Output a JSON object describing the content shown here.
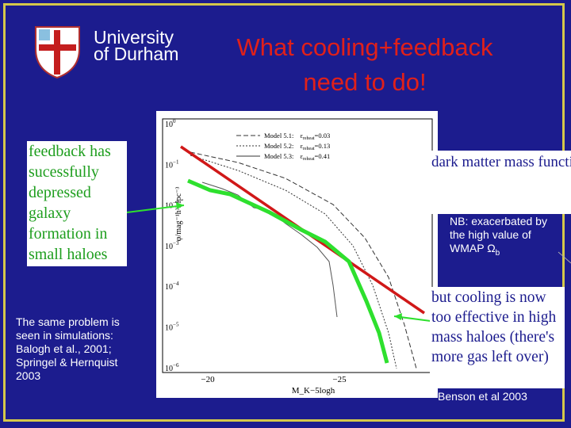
{
  "logo": {
    "line1": "University",
    "line2": "of Durham"
  },
  "title": {
    "line1": "What cooling+feedback",
    "line2": "need to do!"
  },
  "left_box": {
    "text": "feedback has sucessfully depressed galaxy formation in small haloes"
  },
  "left_note": {
    "text": "The same problem is seen in simulations: Balogh et al., 2001; Springel & Hernquist 2003"
  },
  "right_box_top": {
    "text": "dark matter mass function (fixed M/L)"
  },
  "right_note": {
    "text": "NB: exacerbated by the high value of WMAP Ω",
    "sub": "b"
  },
  "right_box_bottom": {
    "text": "but cooling is now too effective in high mass haloes (there's more gas left over)"
  },
  "citation": "Benson et al 2003",
  "plot": {
    "legend": [
      {
        "name": "Model 5.1:",
        "param": "ε",
        "sub": "reheat",
        "value": "=0.03"
      },
      {
        "name": "Model 5.2:",
        "param": "ε",
        "sub": "reheat",
        "value": "=0.13"
      },
      {
        "name": "Model 5.3:",
        "param": "ε",
        "sub": "reheat",
        "value": "=0.41"
      }
    ],
    "yticks": [
      {
        "base": "10",
        "exp": "0"
      },
      {
        "base": "10",
        "exp": "−1"
      },
      {
        "base": "10",
        "exp": "−2"
      },
      {
        "base": "10",
        "exp": "−3"
      },
      {
        "base": "10",
        "exp": "−4"
      },
      {
        "base": "10",
        "exp": "−5"
      },
      {
        "base": "10",
        "exp": "−6"
      }
    ],
    "xticks": [
      "−20",
      "−25"
    ],
    "ylabel": "φ/mag⁻¹h³Mpc⁻³",
    "xlabel": "M_K−5logh"
  }
}
